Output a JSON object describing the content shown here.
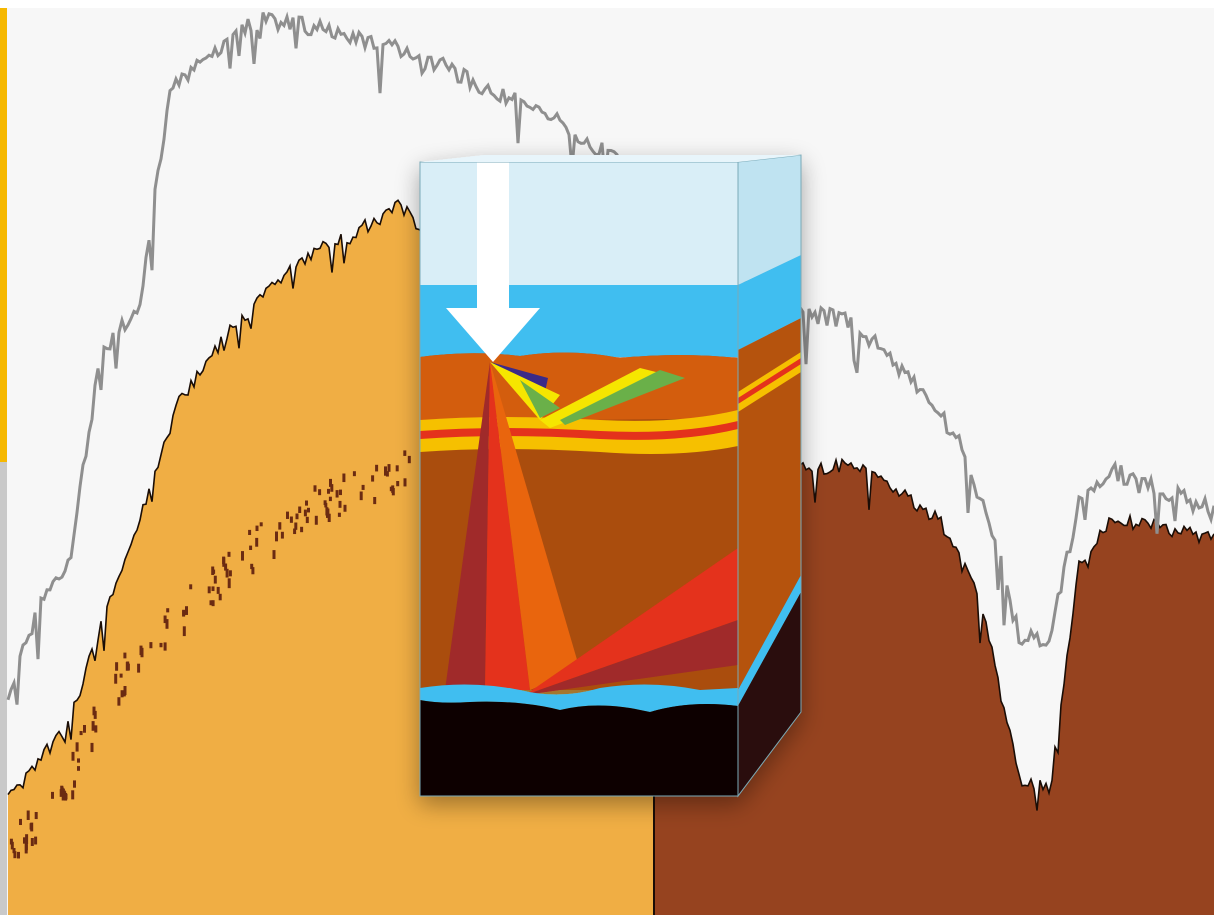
{
  "figure": {
    "kind": "illustration",
    "subject": "spectral-curves-with-layered-block",
    "colors": {
      "background": "#f7f7f7",
      "left_fill": "#f0ae44",
      "right_fill": "#96431f",
      "reference_curve": "#8f8f8f",
      "absorbed_curve": "#1a0d06",
      "scatter_dots": "#6b2b12",
      "edge_bar": "#f6b800",
      "block_sky": "#d9eef7",
      "block_water": "#3fbef0",
      "block_soil_top": "#d35d10",
      "block_soil": "#aa4d0e",
      "block_bedrock": "#0a0604",
      "block_side_dark": "#2a0f0a",
      "arrow": "#ffffff"
    },
    "icons": [
      "down-arrow-icon"
    ]
  }
}
